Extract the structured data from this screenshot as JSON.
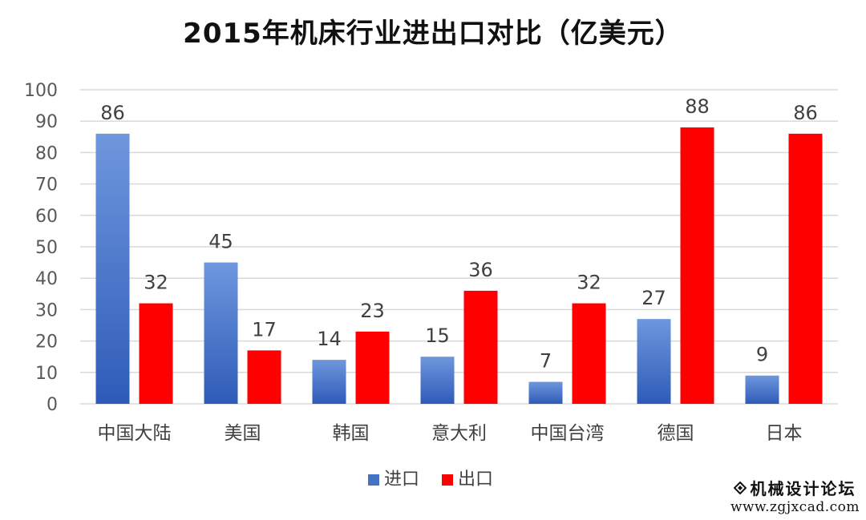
{
  "chart_data": {
    "type": "bar",
    "title": "2015年机床行业进出口对比（亿美元）",
    "categories": [
      "中国大陆",
      "美国",
      "韩国",
      "意大利",
      "中国台湾",
      "德国",
      "日本"
    ],
    "series": [
      {
        "name": "进口",
        "values": [
          86,
          45,
          14,
          15,
          7,
          27,
          9
        ],
        "color": "#4472C4"
      },
      {
        "name": "出口",
        "values": [
          32,
          17,
          23,
          36,
          32,
          88,
          86
        ],
        "color": "#FF0000"
      }
    ],
    "xlabel": "",
    "ylabel": "",
    "ylim": [
      0,
      100
    ],
    "yticks": [
      0,
      10,
      20,
      30,
      40,
      50,
      60,
      70,
      80,
      90,
      100
    ],
    "grid": true,
    "legend": "bottom",
    "data_labels": true
  },
  "watermark": {
    "name": "机械设计论坛",
    "url": "www.zgjxcad.com",
    "icon": "diamond-logo-icon"
  }
}
